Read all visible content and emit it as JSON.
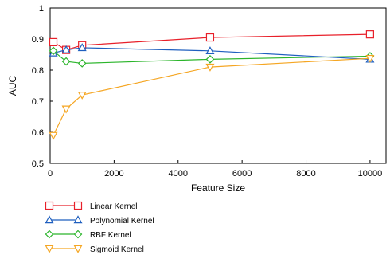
{
  "chart_data": {
    "type": "line",
    "title": "",
    "xlabel": "Feature Size",
    "ylabel": "AUC",
    "xlim": [
      0,
      10500
    ],
    "ylim": [
      0.5,
      1.0
    ],
    "xticks": [
      0,
      2000,
      4000,
      6000,
      8000,
      10000
    ],
    "xtick_labels": [
      "0",
      "2000",
      "4000",
      "6000",
      "8000",
      "10000"
    ],
    "yticks": [
      0.5,
      0.6,
      0.7,
      0.8,
      0.9,
      1.0
    ],
    "ytick_labels": [
      "0.5",
      "0.6",
      "0.7",
      "0.8",
      "0.9",
      "1"
    ],
    "grid": false,
    "legend_position": "below-left",
    "x": [
      100,
      500,
      1000,
      5000,
      10000
    ],
    "series": [
      {
        "name": "Linear Kernel",
        "color": "#e8202a",
        "marker": "square",
        "values": [
          0.89,
          0.865,
          0.88,
          0.905,
          0.915
        ]
      },
      {
        "name": "Polynomial Kernel",
        "color": "#1f5fbf",
        "marker": "triangle-up",
        "values": [
          0.855,
          0.865,
          0.872,
          0.862,
          0.835
        ]
      },
      {
        "name": "RBF Kernel",
        "color": "#2bb52b",
        "marker": "diamond",
        "values": [
          0.862,
          0.828,
          0.822,
          0.835,
          0.845
        ]
      },
      {
        "name": "Sigmoid Kernel",
        "color": "#f5a623",
        "marker": "triangle-down",
        "values": [
          0.59,
          0.675,
          0.72,
          0.81,
          0.838
        ]
      }
    ]
  }
}
